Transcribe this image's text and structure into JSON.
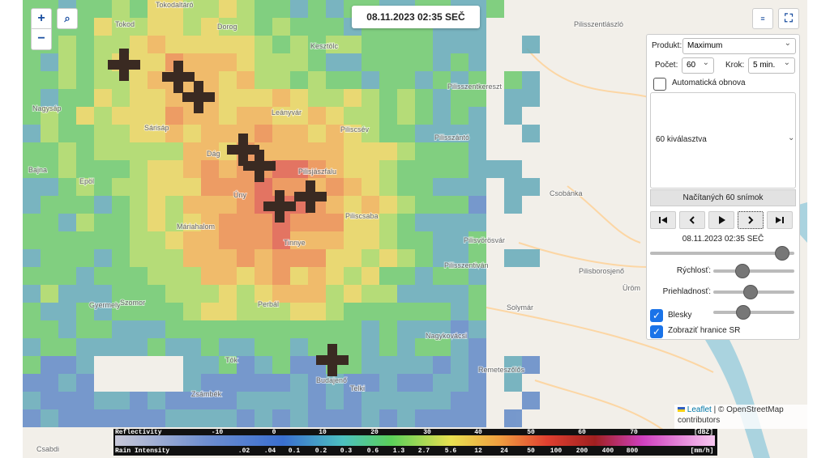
{
  "header": {
    "timestamp": "08.11.2023 02:35 SEČ"
  },
  "map_labels": [
    "Tokodaltáró",
    "Tokod",
    "Dorog",
    "Kesztölc",
    "Pilisszentlászló",
    "Pilisszentkereszt",
    "Nagysáp",
    "Sárisáp",
    "Leányvár",
    "Piliscsév",
    "Pilisszántó",
    "Dág",
    "Bajna",
    "Epöl",
    "Pilisjászfalu",
    "Úny",
    "Csobánka",
    "Piliscsaba",
    "Máriahalom",
    "Pilisvörösvár",
    "Tinnye",
    "Pilisszentiván",
    "Pilisborosjenő",
    "Üröm",
    "Gyermely",
    "Szomor",
    "Perbál",
    "Solymár",
    "Nagykovácsi",
    "Tök",
    "Budajenő",
    "Telki",
    "Remeteszőlős",
    "Zsámbék",
    "Csabdi"
  ],
  "panel": {
    "product_label": "Produkt:",
    "product": "Maximum",
    "count_label": "Počet:",
    "count": "60",
    "step_label": "Krok:",
    "step": "5 min.",
    "auto_refresh": "Automatická obnova",
    "selection": "60 kiválasztva",
    "loaded": "Načítaných 60 snímok",
    "frame_time": "08.11.2023 02:35 SEČ",
    "speed": "Rýchlosť:",
    "opacity": "Priehladnosť:",
    "lightning": "Blesky",
    "borders": "Zobraziť hranice SR"
  },
  "attribution": {
    "leaflet": "Leaflet",
    "osm": "| © OpenStreetMap",
    "contributors": "contributors"
  },
  "legend": {
    "reflectivity_title": "Reflectivity",
    "reflectivity_ticks": [
      "-10",
      "0",
      "10",
      "20",
      "30",
      "40",
      "50",
      "60",
      "70"
    ],
    "reflectivity_unit": "[dBZ]",
    "rain_title": "Rain Intensity",
    "rain_ticks": [
      ".02",
      ".04",
      "0.1",
      "0.2",
      "0.3",
      "0.6",
      "1.3",
      "2.7",
      "5.6",
      "12",
      "24",
      "50",
      "100",
      "200",
      "400",
      "800"
    ],
    "rain_unit": "[mm/h]"
  }
}
